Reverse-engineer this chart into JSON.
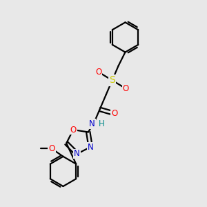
{
  "bg_color": "#e8e8e8",
  "bond_color": "#000000",
  "N_color": "#0000cc",
  "O_color": "#ff0000",
  "S_color": "#cccc00",
  "H_color": "#008888",
  "line_width": 1.6,
  "figsize": [
    3.0,
    3.0
  ],
  "dpi": 100,
  "xlim": [
    0,
    10
  ],
  "ylim": [
    0,
    10
  ]
}
